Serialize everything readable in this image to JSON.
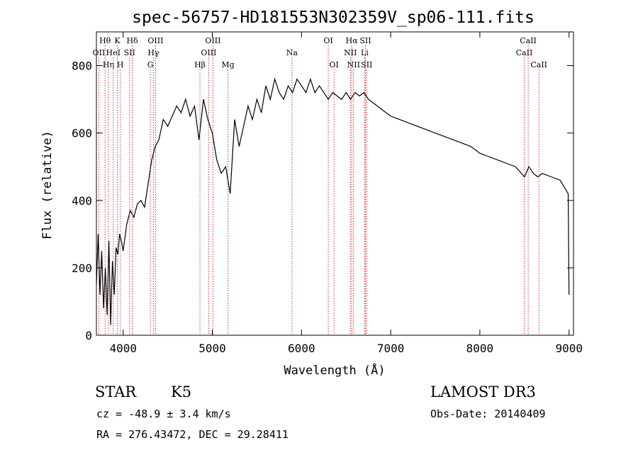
{
  "chart_data": {
    "type": "line",
    "title": "spec-56757-HD181553N302359V_sp06-111.fits",
    "xlabel": "Wavelength (Å)",
    "ylabel": "Flux (relative)",
    "xlim": [
      3700,
      9050
    ],
    "ylim": [
      0,
      900
    ],
    "x_ticks": [
      4000,
      5000,
      6000,
      7000,
      8000,
      9000
    ],
    "y_ticks": [
      0,
      200,
      400,
      600,
      800
    ],
    "grid": false,
    "series": [
      {
        "x": [
          3700,
          3720,
          3740,
          3760,
          3780,
          3800,
          3820,
          3840,
          3860,
          3880,
          3900,
          3920,
          3940,
          3960,
          3980,
          4000,
          4040,
          4080,
          4120,
          4160,
          4200,
          4240,
          4280,
          4320,
          4360,
          4400,
          4450,
          4500,
          4550,
          4600,
          4650,
          4700,
          4750,
          4800,
          4850,
          4900,
          4950,
          5000,
          5050,
          5100,
          5150,
          5200,
          5250,
          5300,
          5350,
          5400,
          5450,
          5500,
          5550,
          5600,
          5650,
          5700,
          5750,
          5800,
          5850,
          5900,
          5950,
          6000,
          6050,
          6100,
          6150,
          6200,
          6250,
          6300,
          6350,
          6400,
          6450,
          6500,
          6550,
          6600,
          6650,
          6700,
          6750,
          6800,
          6850,
          6900,
          6950,
          7000,
          7100,
          7200,
          7300,
          7400,
          7500,
          7600,
          7700,
          7800,
          7900,
          8000,
          8100,
          8200,
          8300,
          8400,
          8500,
          8550,
          8600,
          8650,
          8700,
          8800,
          8900,
          8990,
          9000
        ],
        "y": [
          150,
          300,
          120,
          250,
          80,
          200,
          60,
          280,
          30,
          220,
          120,
          260,
          240,
          300,
          280,
          250,
          330,
          370,
          350,
          390,
          400,
          380,
          450,
          520,
          560,
          580,
          640,
          620,
          650,
          680,
          660,
          700,
          650,
          680,
          580,
          700,
          640,
          600,
          520,
          480,
          500,
          420,
          640,
          560,
          620,
          680,
          640,
          700,
          660,
          740,
          700,
          760,
          720,
          700,
          740,
          720,
          760,
          740,
          720,
          760,
          720,
          740,
          720,
          700,
          720,
          710,
          700,
          720,
          700,
          720,
          710,
          720,
          700,
          690,
          680,
          670,
          660,
          650,
          640,
          630,
          620,
          610,
          600,
          590,
          580,
          570,
          560,
          540,
          530,
          520,
          510,
          500,
          470,
          500,
          480,
          470,
          480,
          470,
          460,
          420,
          120
        ]
      }
    ],
    "line_markers": [
      {
        "label": "Hθ",
        "x": 3797,
        "row": 1
      },
      {
        "label": "OII",
        "x": 3727,
        "row": 2
      },
      {
        "label": "Hη",
        "x": 3835,
        "row": 3
      },
      {
        "label": "HeI",
        "x": 3889,
        "row": 2
      },
      {
        "label": "K",
        "x": 3934,
        "row": 1
      },
      {
        "label": "H",
        "x": 3968,
        "row": 3
      },
      {
        "label": "Hδ",
        "x": 4102,
        "row": 1
      },
      {
        "label": "SII",
        "x": 4072,
        "row": 2
      },
      {
        "label": "OIII",
        "x": 4363,
        "row": 1
      },
      {
        "label": "Hγ",
        "x": 4340,
        "row": 2
      },
      {
        "label": "G",
        "x": 4305,
        "row": 3
      },
      {
        "label": "Hβ",
        "x": 4861,
        "row": 3
      },
      {
        "label": "OIII",
        "x": 5007,
        "row": 1
      },
      {
        "label": "OIII",
        "x": 4959,
        "row": 2
      },
      {
        "label": "Mg",
        "x": 5175,
        "row": 3
      },
      {
        "label": "Na",
        "x": 5893,
        "row": 2
      },
      {
        "label": "OI",
        "x": 6300,
        "row": 1
      },
      {
        "label": "OI",
        "x": 6364,
        "row": 3
      },
      {
        "label": "Hα",
        "x": 6563,
        "row": 1
      },
      {
        "label": "NII",
        "x": 6548,
        "row": 2
      },
      {
        "label": "NII",
        "x": 6584,
        "row": 3
      },
      {
        "label": "SII",
        "x": 6717,
        "row": 1
      },
      {
        "label": "Li",
        "x": 6708,
        "row": 2
      },
      {
        "label": "SII",
        "x": 6731,
        "row": 3
      },
      {
        "label": "CaII",
        "x": 8542,
        "row": 1
      },
      {
        "label": "CaII",
        "x": 8498,
        "row": 2
      },
      {
        "label": "CaII",
        "x": 8662,
        "row": 3
      }
    ]
  },
  "info": {
    "object_class": "STAR",
    "subclass": "K5",
    "survey": "LAMOST DR3",
    "cz": "cz = -48.9 ± 3.4 km/s",
    "obs_date": "Obs-Date: 20140409",
    "coords": "RA = 276.43472, DEC =  29.28411"
  },
  "colors": {
    "spectrum": "#000000",
    "marker_line": "#c00000",
    "background": "#ffffff"
  }
}
